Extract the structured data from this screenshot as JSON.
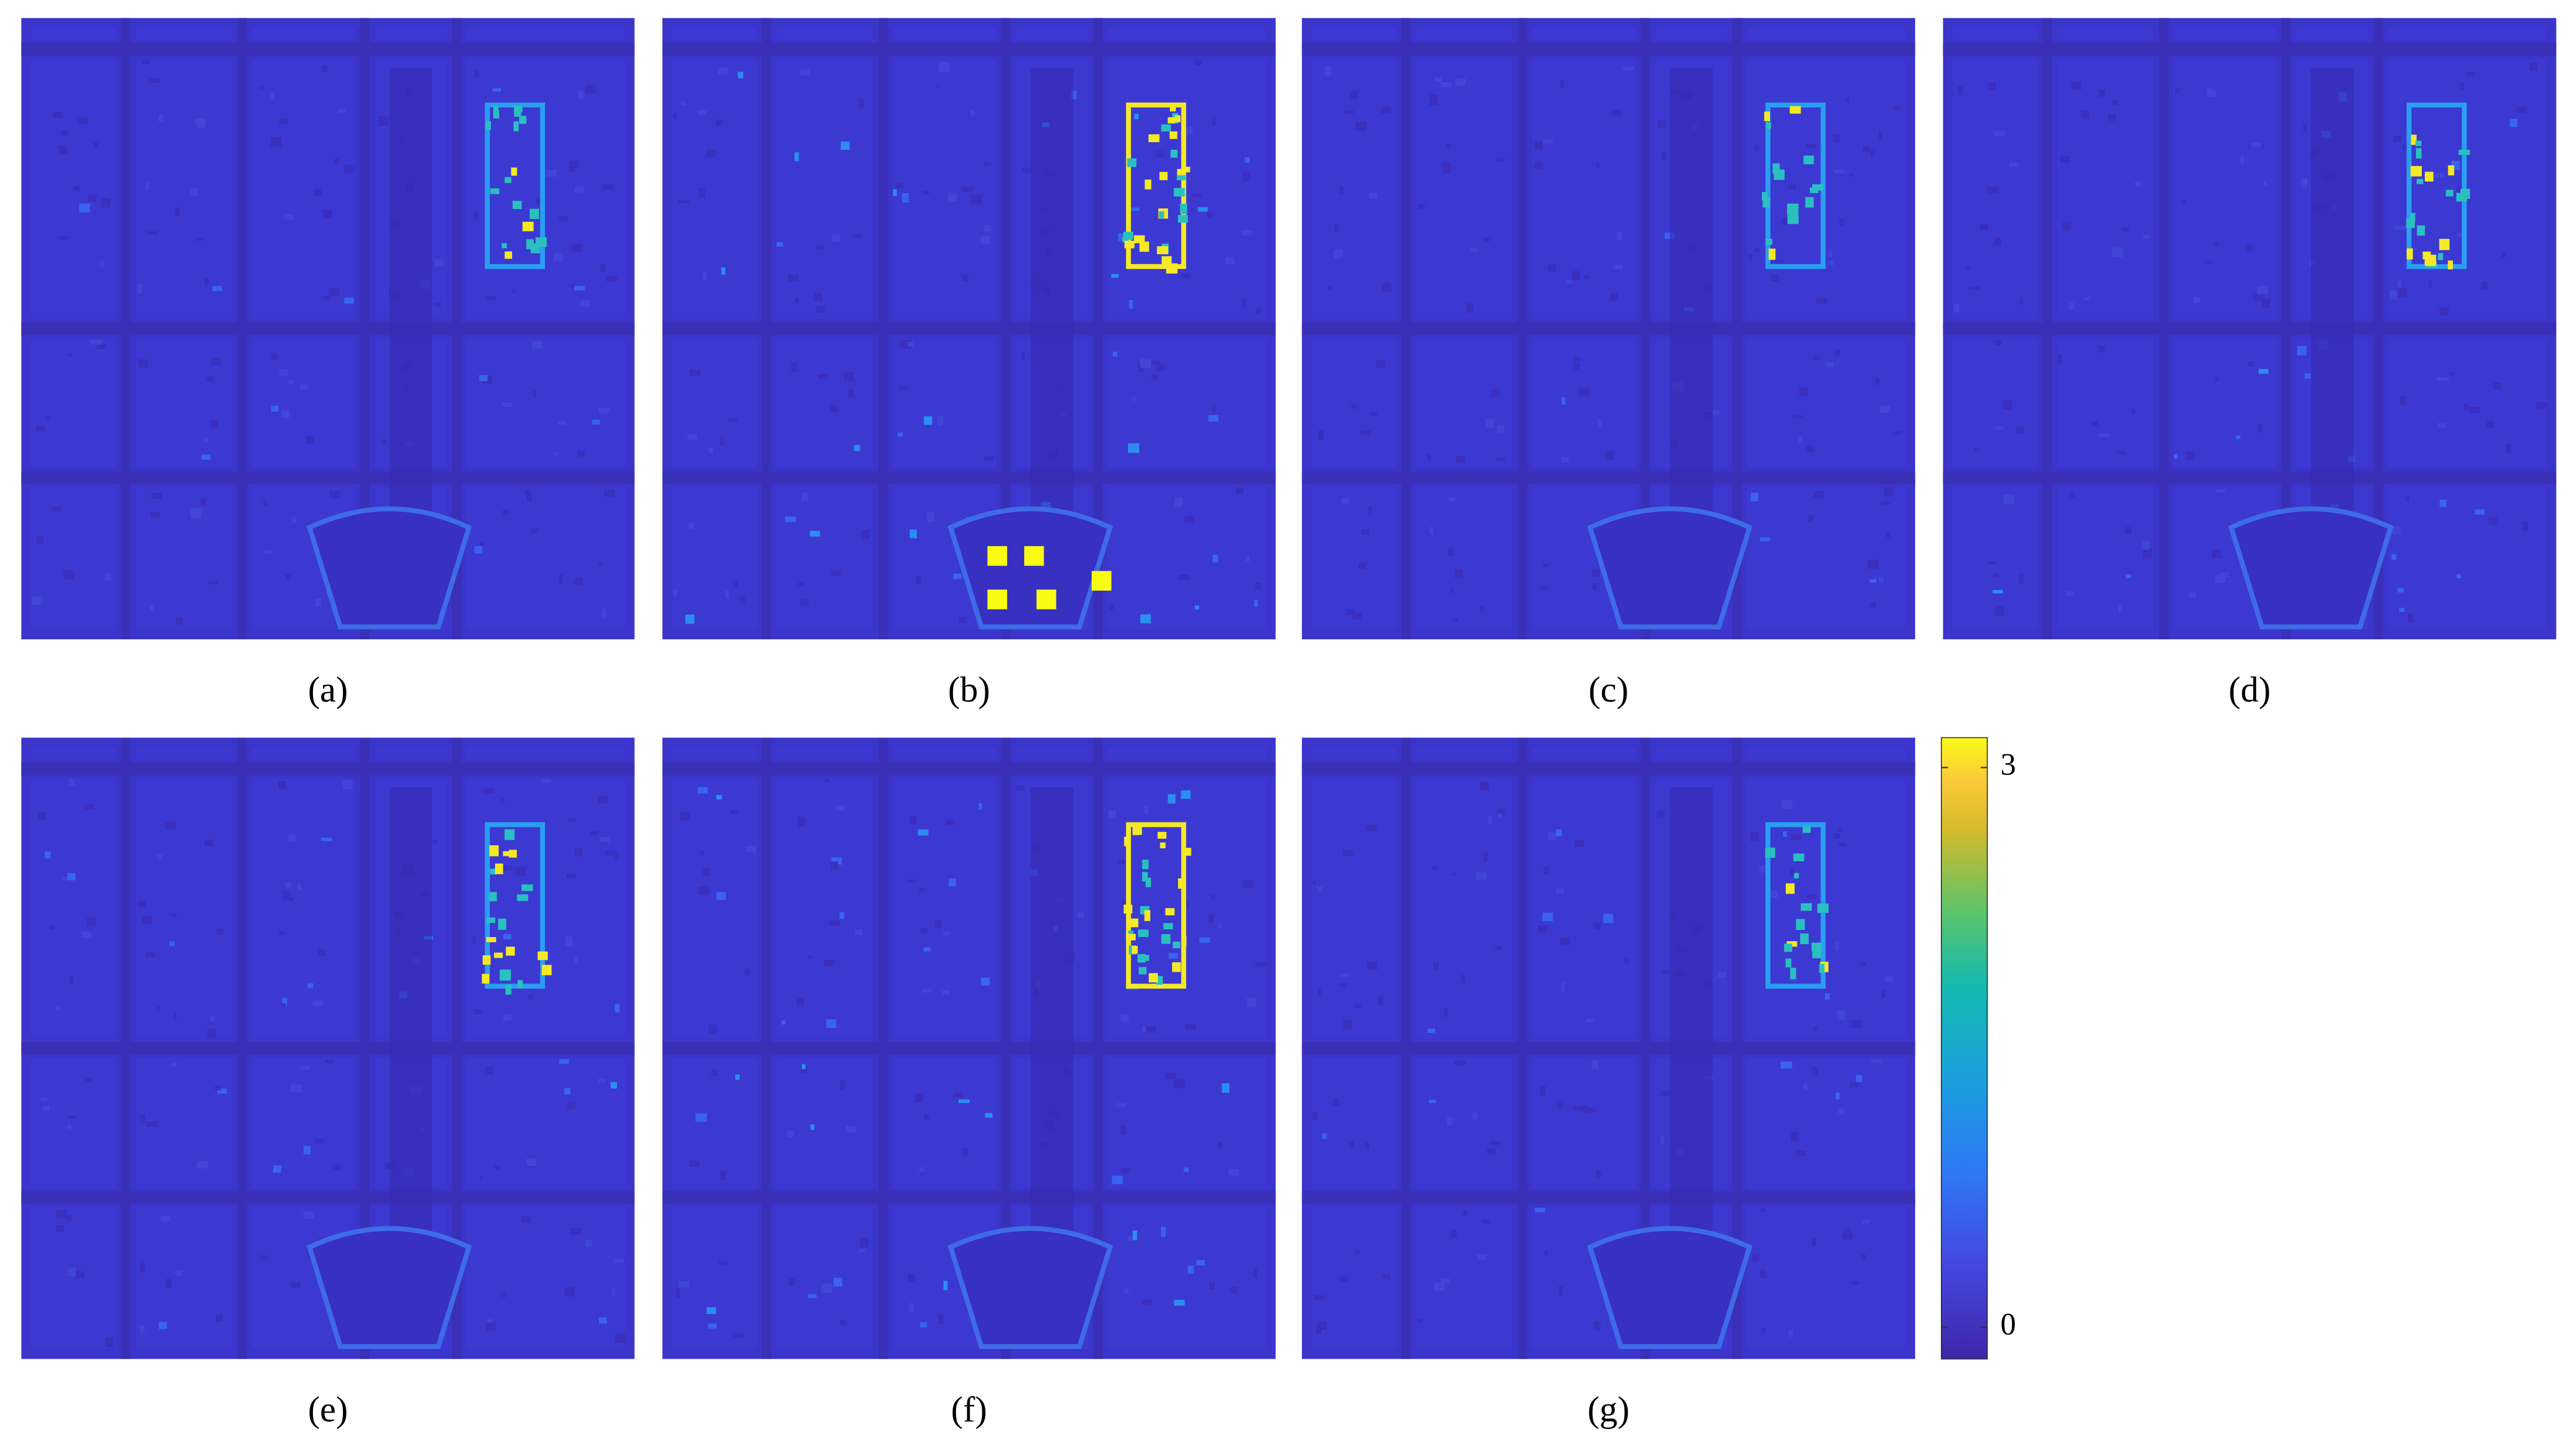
{
  "panels": [
    {
      "label": "(a)"
    },
    {
      "label": "(b)"
    },
    {
      "label": "(c)"
    },
    {
      "label": "(d)"
    },
    {
      "label": "(e)"
    },
    {
      "label": "(f)"
    },
    {
      "label": "(g)"
    }
  ],
  "colorbar": {
    "clim": [
      -0.17,
      3.16
    ],
    "ticks": [
      0,
      3
    ]
  }
}
